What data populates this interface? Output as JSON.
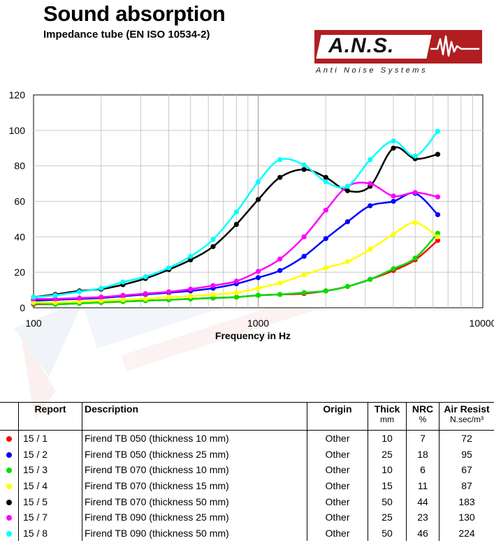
{
  "header": {
    "title": "Sound absorption",
    "subtitle": "Impedance tube (EN ISO 10534-2)"
  },
  "logo": {
    "text": "A.N.S.",
    "tagline": "Anti Noise Systems",
    "color": "#b01e22"
  },
  "chart_data": {
    "type": "line",
    "x_scale": "log",
    "xlim": [
      100,
      10000
    ],
    "ylim": [
      0,
      120
    ],
    "xticks": [
      100,
      1000,
      10000
    ],
    "xtick_labels": [
      "100",
      "1000",
      "10000"
    ],
    "yticks": [
      0,
      20,
      40,
      60,
      80,
      100,
      120
    ],
    "xlabel": "Frequency in Hz",
    "ylabel": "",
    "grid": true,
    "x": [
      100,
      125,
      160,
      200,
      250,
      315,
      400,
      500,
      630,
      800,
      1000,
      1250,
      1600,
      2000,
      2500,
      3150,
      4000,
      5000,
      6300
    ],
    "series": [
      {
        "color": "#ff0000",
        "values": [
          2,
          2,
          2.5,
          3,
          3.5,
          4,
          4.5,
          5,
          5.5,
          6,
          7,
          7.5,
          8,
          9.5,
          12,
          16,
          21,
          27,
          38
        ]
      },
      {
        "color": "#0000ff",
        "values": [
          4,
          4.5,
          5,
          5.5,
          6.5,
          7.5,
          8.5,
          9.5,
          11,
          13.5,
          17,
          21,
          29,
          39,
          48.5,
          57.5,
          60,
          64.5,
          52.5
        ]
      },
      {
        "color": "#00dd00",
        "values": [
          2.5,
          2,
          2.5,
          3,
          3.5,
          4,
          4.5,
          5,
          5.5,
          6,
          7,
          7.5,
          8.5,
          9.5,
          12,
          16,
          22,
          28,
          42
        ]
      },
      {
        "color": "#ffff00",
        "values": [
          3,
          3,
          3.5,
          4,
          4.5,
          5,
          6,
          6.5,
          7.5,
          8.5,
          11,
          14,
          18.5,
          22.5,
          26,
          33,
          41.5,
          48,
          40
        ]
      },
      {
        "color": "#000000",
        "values": [
          6,
          7.5,
          9.5,
          10.5,
          13,
          16.5,
          21.5,
          27,
          34.5,
          47,
          61,
          73.5,
          78,
          73.5,
          66,
          68.5,
          90,
          84,
          86.5
        ]
      },
      {
        "color": "#ff00ff",
        "values": [
          5,
          5,
          5.5,
          6,
          7,
          8,
          9,
          10.5,
          12.5,
          15,
          20.5,
          27.5,
          40,
          55,
          68.5,
          70,
          63,
          65,
          62.5
        ]
      },
      {
        "color": "#00ffff",
        "values": [
          6,
          7,
          9,
          11,
          14.5,
          17.5,
          22.5,
          29,
          38.5,
          54,
          71,
          83.5,
          80.5,
          71,
          68.5,
          83.5,
          94,
          85.5,
          99.5
        ]
      }
    ]
  },
  "table": {
    "headers": {
      "report": "Report",
      "description": "Description",
      "origin": "Origin",
      "thick": "Thick",
      "thick_unit": "mm",
      "nrc": "NRC",
      "nrc_unit": "%",
      "air": "Air Resist",
      "air_unit": "N.sec/m³"
    },
    "rows": [
      {
        "color": "#ff0000",
        "report": "15 / 1",
        "description": "Firend TB 050 (thickness 10 mm)",
        "origin": "Other",
        "thick": "10",
        "nrc": "7",
        "air": "72"
      },
      {
        "color": "#0000ff",
        "report": "15 / 2",
        "description": "Firend TB 050 (thickness 25 mm)",
        "origin": "Other",
        "thick": "25",
        "nrc": "18",
        "air": "95"
      },
      {
        "color": "#00dd00",
        "report": "15 / 3",
        "description": "Firend TB 070 (thickness 10 mm)",
        "origin": "Other",
        "thick": "10",
        "nrc": "6",
        "air": "67"
      },
      {
        "color": "#ffff00",
        "report": "15 / 4",
        "description": "Firend TB 070 (thickness 15 mm)",
        "origin": "Other",
        "thick": "15",
        "nrc": "11",
        "air": "87"
      },
      {
        "color": "#000000",
        "report": "15 / 5",
        "description": "Firend TB 070 (thickness 50 mm)",
        "origin": "Other",
        "thick": "50",
        "nrc": "44",
        "air": "183"
      },
      {
        "color": "#ff00ff",
        "report": "15 / 7",
        "description": "Firend TB 090 (thickness 25 mm)",
        "origin": "Other",
        "thick": "25",
        "nrc": "23",
        "air": "130"
      },
      {
        "color": "#00ffff",
        "report": "15 / 8",
        "description": "Firend TB 090 (thickness 50 mm)",
        "origin": "Other",
        "thick": "50",
        "nrc": "46",
        "air": "224"
      }
    ]
  }
}
